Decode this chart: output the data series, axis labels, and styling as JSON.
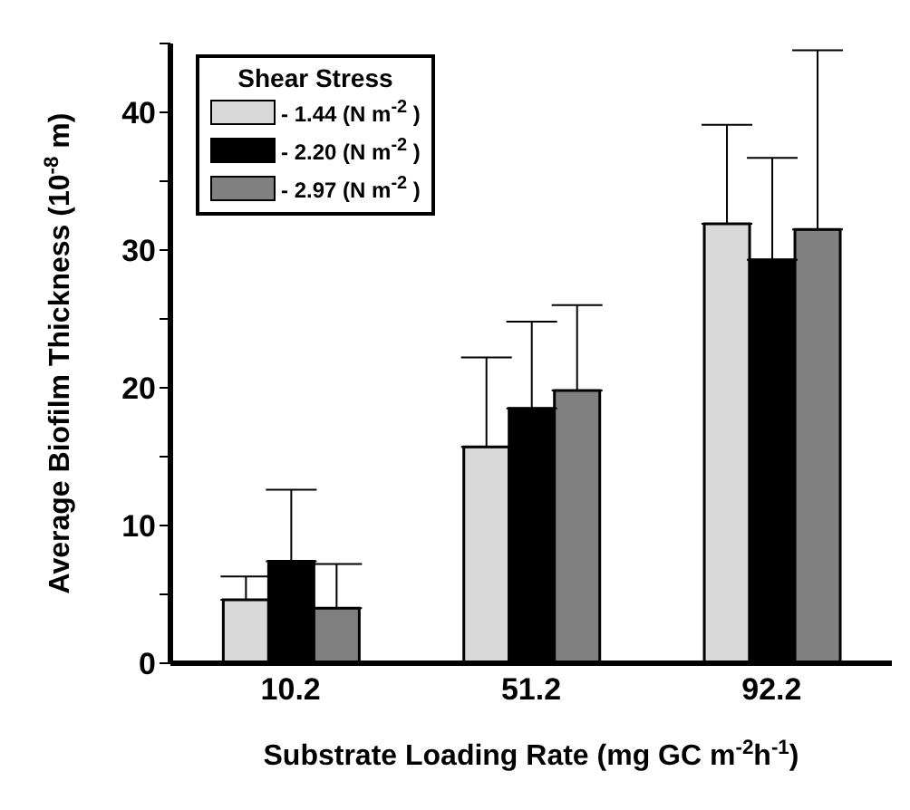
{
  "chart_data": {
    "type": "bar",
    "categories": [
      "10.2",
      "51.2",
      "92.2"
    ],
    "xlabel": "Substrate Loading Rate (mg GC m$^{-2}$h$^{-1}$)",
    "ylabel": "Average Biofilm Thickness (10$^{-8}$ m)",
    "legend_title": "Shear Stress",
    "series": [
      {
        "name": "- 1.44 (N m$^{-2}$ )",
        "color": "#d9d9d9",
        "values": [
          4.6,
          15.7,
          31.9
        ],
        "errors": [
          [
            4.6,
            6.3
          ],
          [
            15.7,
            22.2
          ],
          [
            31.9,
            39.1
          ]
        ]
      },
      {
        "name": "- 2.20 (N m$^{-2}$ )",
        "color": "#000000",
        "values": [
          7.4,
          18.5,
          29.3
        ],
        "errors": [
          [
            7.4,
            12.6
          ],
          [
            18.5,
            24.8
          ],
          [
            29.3,
            36.7
          ]
        ]
      },
      {
        "name": "- 2.97 (N m$^{-2}$ )",
        "color": "#808080",
        "values": [
          4.0,
          19.8,
          31.5
        ],
        "errors": [
          [
            4.0,
            7.2
          ],
          [
            19.8,
            26.0
          ],
          [
            31.5,
            44.5
          ]
        ]
      }
    ],
    "ylim": [
      0,
      45
    ],
    "yticks": [
      0,
      {
        "value": 5,
        "label": null
      },
      10,
      {
        "value": 15,
        "label": null
      },
      20,
      {
        "value": 25,
        "label": null
      },
      30,
      {
        "value": 35,
        "label": null
      },
      40,
      {
        "value": 45,
        "label": null
      }
    ],
    "grid": false,
    "legend": "top left"
  }
}
